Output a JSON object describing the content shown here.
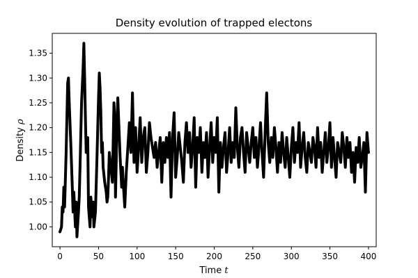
{
  "chart_data": {
    "type": "line",
    "title": "Density evolution of trapped electons",
    "xlabel_main": "Time ",
    "xlabel_symbol": "t",
    "ylabel_main": "Density ",
    "ylabel_symbol": "ρ",
    "xlim": [
      -10,
      410
    ],
    "ylim": [
      0.96,
      1.39
    ],
    "xticks": [
      0,
      50,
      100,
      150,
      200,
      250,
      300,
      350,
      400
    ],
    "xtick_labels": [
      "0",
      "50",
      "100",
      "150",
      "200",
      "250",
      "300",
      "350",
      "400"
    ],
    "yticks": [
      1.0,
      1.05,
      1.1,
      1.15,
      1.2,
      1.25,
      1.3,
      1.35
    ],
    "ytick_labels": [
      "1.00",
      "1.05",
      "1.10",
      "1.15",
      "1.20",
      "1.25",
      "1.30",
      "1.35"
    ],
    "grid": false,
    "legend": false,
    "series": [
      {
        "color": "#000000",
        "x": [
          0,
          2,
          3,
          4,
          5,
          6,
          8,
          10,
          11,
          12,
          14,
          16,
          17,
          18,
          20,
          21,
          22,
          24,
          25,
          26,
          28,
          30,
          31,
          32,
          33,
          34,
          36,
          37,
          38,
          39,
          40,
          42,
          43,
          44,
          46,
          48,
          50,
          51,
          52,
          53,
          54,
          55,
          56,
          58,
          60,
          61,
          62,
          63,
          64,
          66,
          68,
          70,
          71,
          72,
          74,
          75,
          76,
          77,
          78,
          80,
          81,
          82,
          84,
          86,
          88,
          90,
          92,
          94,
          96,
          98,
          100,
          102,
          104,
          106,
          108,
          110,
          112,
          114,
          116,
          118,
          120,
          122,
          124,
          126,
          128,
          130,
          132,
          134,
          136,
          138,
          140,
          142,
          144,
          146,
          148,
          150,
          152,
          154,
          156,
          158,
          160,
          162,
          164,
          166,
          168,
          170,
          172,
          174,
          176,
          178,
          180,
          182,
          184,
          186,
          188,
          190,
          192,
          194,
          196,
          198,
          200,
          202,
          204,
          206,
          208,
          210,
          212,
          214,
          216,
          218,
          220,
          222,
          224,
          226,
          228,
          230,
          232,
          234,
          236,
          238,
          240,
          242,
          244,
          246,
          248,
          250,
          252,
          254,
          256,
          258,
          260,
          262,
          264,
          266,
          268,
          270,
          272,
          274,
          276,
          278,
          280,
          282,
          284,
          286,
          288,
          290,
          292,
          294,
          296,
          298,
          300,
          302,
          304,
          306,
          308,
          310,
          312,
          314,
          316,
          318,
          320,
          322,
          324,
          326,
          328,
          330,
          332,
          334,
          336,
          338,
          340,
          342,
          344,
          346,
          348,
          350,
          352,
          354,
          356,
          358,
          360,
          362,
          364,
          366,
          368,
          370,
          372,
          374,
          376,
          378,
          380,
          382,
          384,
          386,
          388,
          390,
          392,
          394,
          396,
          398,
          400
        ],
        "y": [
          0.99,
          1.0,
          1.04,
          1.03,
          1.08,
          1.04,
          1.15,
          1.29,
          1.3,
          1.25,
          1.17,
          1.08,
          1.03,
          1.07,
          1.0,
          1.05,
          0.98,
          1.03,
          1.06,
          1.12,
          1.25,
          1.32,
          1.37,
          1.3,
          1.22,
          1.15,
          1.18,
          1.04,
          1.02,
          1.0,
          1.06,
          1.02,
          1.05,
          1.0,
          1.03,
          1.14,
          1.26,
          1.31,
          1.28,
          1.23,
          1.15,
          1.17,
          1.12,
          1.09,
          1.07,
          1.05,
          1.06,
          1.1,
          1.15,
          1.12,
          1.09,
          1.25,
          1.22,
          1.06,
          1.21,
          1.26,
          1.22,
          1.18,
          1.14,
          1.08,
          1.12,
          1.09,
          1.04,
          1.11,
          1.16,
          1.21,
          1.15,
          1.27,
          1.13,
          1.2,
          1.11,
          1.16,
          1.22,
          1.13,
          1.18,
          1.2,
          1.11,
          1.15,
          1.21,
          1.18,
          1.16,
          1.14,
          1.17,
          1.12,
          1.15,
          1.18,
          1.09,
          1.17,
          1.13,
          1.18,
          1.14,
          1.19,
          1.06,
          1.18,
          1.23,
          1.1,
          1.14,
          1.19,
          1.16,
          1.13,
          1.09,
          1.17,
          1.21,
          1.15,
          1.19,
          1.12,
          1.16,
          1.22,
          1.08,
          1.18,
          1.15,
          1.2,
          1.11,
          1.17,
          1.14,
          1.19,
          1.1,
          1.16,
          1.21,
          1.13,
          1.18,
          1.15,
          1.22,
          1.07,
          1.17,
          1.12,
          1.16,
          1.19,
          1.11,
          1.15,
          1.2,
          1.13,
          1.17,
          1.14,
          1.24,
          1.16,
          1.12,
          1.18,
          1.2,
          1.15,
          1.11,
          1.19,
          1.16,
          1.13,
          1.17,
          1.2,
          1.14,
          1.18,
          1.12,
          1.16,
          1.21,
          1.15,
          1.1,
          1.19,
          1.27,
          1.17,
          1.13,
          1.18,
          1.14,
          1.2,
          1.16,
          1.11,
          1.17,
          1.13,
          1.19,
          1.15,
          1.12,
          1.18,
          1.14,
          1.1,
          1.16,
          1.2,
          1.13,
          1.17,
          1.15,
          1.21,
          1.12,
          1.16,
          1.19,
          1.14,
          1.11,
          1.17,
          1.15,
          1.13,
          1.18,
          1.16,
          1.12,
          1.2,
          1.14,
          1.17,
          1.11,
          1.15,
          1.19,
          1.13,
          1.16,
          1.21,
          1.12,
          1.18,
          1.14,
          1.1,
          1.17,
          1.15,
          1.13,
          1.19,
          1.16,
          1.12,
          1.18,
          1.14,
          1.17,
          1.11,
          1.15,
          1.09,
          1.16,
          1.13,
          1.18,
          1.12,
          1.14,
          1.17,
          1.07,
          1.19,
          1.15
        ]
      }
    ]
  }
}
